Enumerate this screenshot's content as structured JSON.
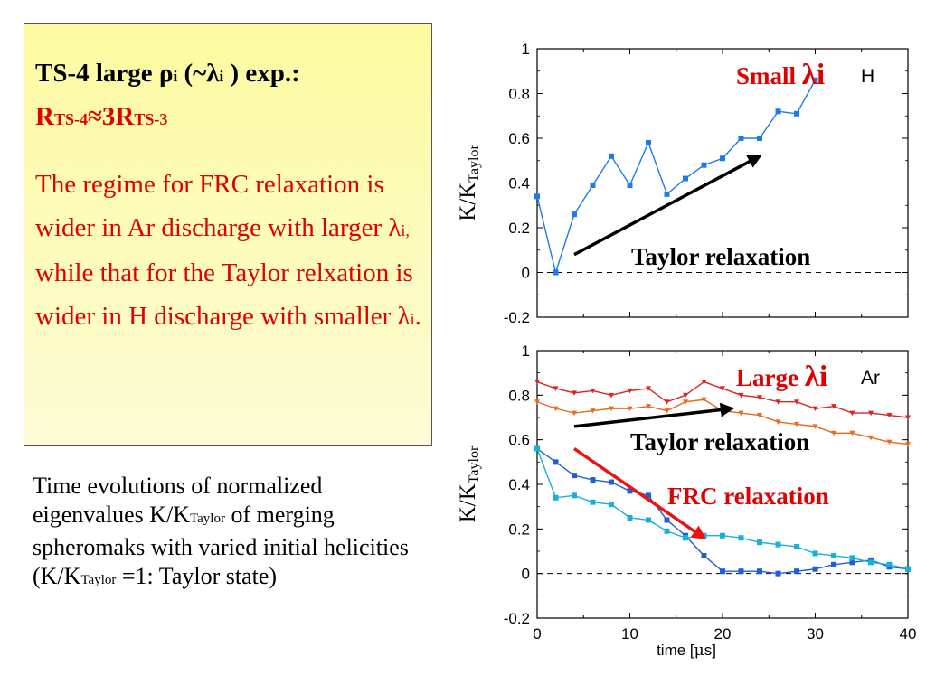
{
  "textbox": {
    "heading_prefix": "TS-4 large ",
    "rho": "ρ",
    "rho_sub": "i",
    "paren_open": " (~",
    "lambda": "λ",
    "lambda_sub": "i",
    "heading_suffix": " ) exp.:",
    "rel_r1": "R",
    "rel_s1": "TS-4",
    "rel_mid": "≈3R",
    "rel_s2": "TS-3",
    "body_1": "The regime for FRC relaxation is wider in Ar discharge with larger ",
    "body_lambda_1": "λ",
    "body_sub_1": "i,",
    "body_2": " while that for the Taylor relxation is wider in H discharge with smaller ",
    "body_lambda_2": "λ",
    "body_sub_2": "i",
    "body_3": "."
  },
  "caption": {
    "part1": "Time evolutions of normalized eigenvalues K/K",
    "sub1": "Taylor",
    "part2": " of merging spheromaks with varied initial helicities (K/K",
    "sub2": "Taylor",
    "part3": " =1: Taylor state)"
  },
  "chart_data": [
    {
      "type": "line",
      "ylabel_main": "K/K",
      "ylabel_sub": "Taylor",
      "xlim": [
        0,
        40
      ],
      "ylim": [
        -0.2,
        1
      ],
      "yticks": [
        "-0.2",
        "0",
        "0.2",
        "0.4",
        "0.6",
        "0.8",
        "1"
      ],
      "gas_label": "H",
      "annotation_lambda_prefix": "Small ",
      "annotation_lambda": "λi",
      "arrow_label": "Taylor relaxation",
      "zero_line": "dashed",
      "series": [
        {
          "color": "#1e7aeb",
          "marker": "square",
          "x": [
            0,
            2,
            4,
            6,
            8,
            10,
            12,
            14,
            16,
            18,
            20,
            22,
            24,
            26,
            28,
            30
          ],
          "values": [
            0.34,
            0.0,
            0.26,
            0.39,
            0.52,
            0.39,
            0.58,
            0.35,
            0.42,
            0.48,
            0.51,
            0.6,
            0.6,
            0.72,
            0.71,
            0.86
          ]
        }
      ],
      "arrows": [
        {
          "color": "#000000",
          "from": [
            4,
            0.08
          ],
          "to": [
            24,
            0.52
          ]
        }
      ]
    },
    {
      "type": "line",
      "ylabel_main": "K/K",
      "ylabel_sub": "Taylor",
      "xlabel_prefix": "time [",
      "xlabel_mu": "μ",
      "xlabel_suffix": "s]",
      "xlim": [
        0,
        40
      ],
      "ylim": [
        -0.2,
        1
      ],
      "xticks": [
        "0",
        "10",
        "20",
        "30",
        "40"
      ],
      "yticks": [
        "-0.2",
        "0",
        "0.2",
        "0.4",
        "0.6",
        "0.8",
        "1"
      ],
      "gas_label": "Ar",
      "annotation_lambda_prefix": "Large ",
      "annotation_lambda": "λi",
      "arrow_label": "Taylor relaxation",
      "frc_label": "FRC relaxation",
      "zero_line": "dashed",
      "series": [
        {
          "color": "#dd2222",
          "marker": "triangle",
          "x": [
            0,
            2,
            4,
            6,
            8,
            10,
            12,
            14,
            16,
            18,
            20,
            22,
            24,
            26,
            28,
            30,
            32,
            34,
            36,
            38,
            40
          ],
          "values": [
            0.86,
            0.83,
            0.81,
            0.82,
            0.8,
            0.82,
            0.83,
            0.77,
            0.8,
            0.86,
            0.83,
            0.8,
            0.79,
            0.77,
            0.77,
            0.74,
            0.75,
            0.72,
            0.72,
            0.71,
            0.7
          ]
        },
        {
          "color": "#e86a1a",
          "marker": "triangle",
          "x": [
            0,
            2,
            4,
            6,
            8,
            10,
            12,
            14,
            16,
            18,
            20,
            22,
            24,
            26,
            28,
            30,
            32,
            34,
            36,
            38,
            40
          ],
          "values": [
            0.77,
            0.74,
            0.72,
            0.73,
            0.74,
            0.74,
            0.75,
            0.73,
            0.77,
            0.78,
            0.73,
            0.72,
            0.71,
            0.68,
            0.67,
            0.66,
            0.63,
            0.63,
            0.61,
            0.59,
            0.58
          ]
        },
        {
          "color": "#1e5fd8",
          "marker": "square",
          "x": [
            0,
            2,
            4,
            6,
            8,
            10,
            12,
            14,
            16,
            18,
            20,
            22,
            24,
            26,
            28,
            30,
            32,
            34,
            36,
            38,
            40
          ],
          "values": [
            0.56,
            0.5,
            0.44,
            0.42,
            0.41,
            0.37,
            0.35,
            0.24,
            0.17,
            0.08,
            0.01,
            0.01,
            0.01,
            0.0,
            0.01,
            0.02,
            0.04,
            0.05,
            0.06,
            0.03,
            0.02
          ]
        },
        {
          "color": "#17b0d8",
          "marker": "square",
          "x": [
            0,
            2,
            4,
            6,
            8,
            10,
            12,
            14,
            16,
            18,
            20,
            22,
            24,
            26,
            28,
            30,
            32,
            34,
            36,
            38,
            40
          ],
          "values": [
            0.56,
            0.34,
            0.35,
            0.32,
            0.31,
            0.25,
            0.24,
            0.19,
            0.16,
            0.17,
            0.17,
            0.16,
            0.14,
            0.13,
            0.12,
            0.09,
            0.08,
            0.07,
            0.05,
            0.04,
            0.02
          ]
        }
      ],
      "arrows": [
        {
          "color": "#000000",
          "from": [
            4,
            0.66
          ],
          "to": [
            21,
            0.74
          ]
        },
        {
          "color": "#ee1111",
          "from": [
            4,
            0.56
          ],
          "to": [
            18,
            0.16
          ]
        }
      ]
    }
  ]
}
